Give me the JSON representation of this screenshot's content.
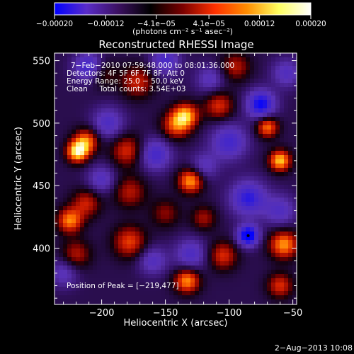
{
  "chart_data": {
    "type": "heatmap",
    "title": "Reconstructed RHESSI Image",
    "xlabel": "Heliocentric X (arcsec)",
    "ylabel": "Heliocentric Y (arcsec)",
    "xlim": [
      -237,
      -47
    ],
    "ylim": [
      355,
      556
    ],
    "xticks": [
      -200,
      -150,
      -100,
      -50
    ],
    "xtick_labels": [
      "−200",
      "−150",
      "−100",
      "−50"
    ],
    "yticks": [
      400,
      450,
      500,
      550
    ],
    "ytick_labels": [
      "400",
      "450",
      "500",
      "550"
    ],
    "colorbar": {
      "range": [
        -0.0002,
        0.0002
      ],
      "ticks": [
        -0.0002,
        -0.00012,
        -4.1e-05,
        4.1e-05,
        0.00012,
        0.0002
      ],
      "tick_labels": [
        "−0.00020",
        "−0.00012",
        "−4.1e−05",
        "4.1e−05",
        "0.00012",
        "0.00020"
      ],
      "unit_label": "(photons cm⁻² s⁻¹ asec⁻²)",
      "colormap": [
        "#0000ff",
        "#5a2cc8",
        "#3b1060",
        "#000000",
        "#7a0000",
        "#ff3000",
        "#ff8c00",
        "#ffff60",
        "#ffffff"
      ]
    },
    "annotations": [
      "7−Feb−2010 07:59:48.000 to 08:01:36.000",
      "Detectors: 4F 5F 6F 7F 8F, Att 0",
      "Energy Range: 25.0 − 50.0 keV",
      "Clean     Total counts: 3.54E+03"
    ],
    "peak_label": "Position of Peak = [−219,477]",
    "peak_position": [
      -219,
      477
    ],
    "blobs": [
      {
        "x": -219,
        "y": 477,
        "v": 1.0,
        "s": 6
      },
      {
        "x": -212,
        "y": 486,
        "v": 0.7,
        "s": 7
      },
      {
        "x": -134,
        "y": 506,
        "v": 0.8,
        "s": 7
      },
      {
        "x": -142,
        "y": 498,
        "v": 0.6,
        "s": 8
      },
      {
        "x": -130,
        "y": 454,
        "v": 0.85,
        "s": 7
      },
      {
        "x": -133,
        "y": 374,
        "v": 0.8,
        "s": 7
      },
      {
        "x": -60,
        "y": 470,
        "v": 0.9,
        "s": 6
      },
      {
        "x": -70,
        "y": 497,
        "v": 0.75,
        "s": 6
      },
      {
        "x": -57,
        "y": 403,
        "v": 0.8,
        "s": 8
      },
      {
        "x": -225,
        "y": 422,
        "v": 0.75,
        "s": 7
      },
      {
        "x": -212,
        "y": 436,
        "v": 0.5,
        "s": 8
      },
      {
        "x": -178,
        "y": 405,
        "v": 0.6,
        "s": 9
      },
      {
        "x": -180,
        "y": 478,
        "v": 0.55,
        "s": 9
      },
      {
        "x": -172,
        "y": 533,
        "v": 0.5,
        "s": 9
      },
      {
        "x": -108,
        "y": 514,
        "v": 0.55,
        "s": 8
      },
      {
        "x": -105,
        "y": 394,
        "v": 0.55,
        "s": 8
      },
      {
        "x": -120,
        "y": 424,
        "v": 0.4,
        "s": 7
      },
      {
        "x": -178,
        "y": 445,
        "v": 0.45,
        "s": 9
      },
      {
        "x": -95,
        "y": 545,
        "v": 0.45,
        "s": 8
      },
      {
        "x": -60,
        "y": 370,
        "v": 0.55,
        "s": 7
      },
      {
        "x": -220,
        "y": 395,
        "v": 0.45,
        "s": 8
      },
      {
        "x": -150,
        "y": 428,
        "v": 0.35,
        "s": 8
      },
      {
        "x": -200,
        "y": 540,
        "v": 0.35,
        "s": 8
      },
      {
        "x": -85,
        "y": 410,
        "v": -1.0,
        "s": 6
      },
      {
        "x": -75,
        "y": 515,
        "v": -0.85,
        "s": 8
      },
      {
        "x": -100,
        "y": 485,
        "v": -0.6,
        "s": 10
      },
      {
        "x": -85,
        "y": 440,
        "v": -0.7,
        "s": 10
      },
      {
        "x": -158,
        "y": 475,
        "v": -0.6,
        "s": 9
      },
      {
        "x": -195,
        "y": 500,
        "v": -0.5,
        "s": 9
      },
      {
        "x": -210,
        "y": 545,
        "v": -0.7,
        "s": 8
      },
      {
        "x": -150,
        "y": 550,
        "v": -0.55,
        "s": 8
      },
      {
        "x": -200,
        "y": 455,
        "v": -0.45,
        "s": 8
      },
      {
        "x": -130,
        "y": 395,
        "v": -0.5,
        "s": 9
      },
      {
        "x": -60,
        "y": 430,
        "v": -0.45,
        "s": 9
      },
      {
        "x": -230,
        "y": 380,
        "v": -0.4,
        "s": 8
      },
      {
        "x": -160,
        "y": 390,
        "v": -0.45,
        "s": 8
      },
      {
        "x": -115,
        "y": 535,
        "v": -0.4,
        "s": 8
      },
      {
        "x": -120,
        "y": 465,
        "v": -0.4,
        "s": 8
      },
      {
        "x": -55,
        "y": 540,
        "v": -0.45,
        "s": 8
      }
    ]
  },
  "footer": {
    "date": "2−Aug−2013 10:08"
  }
}
